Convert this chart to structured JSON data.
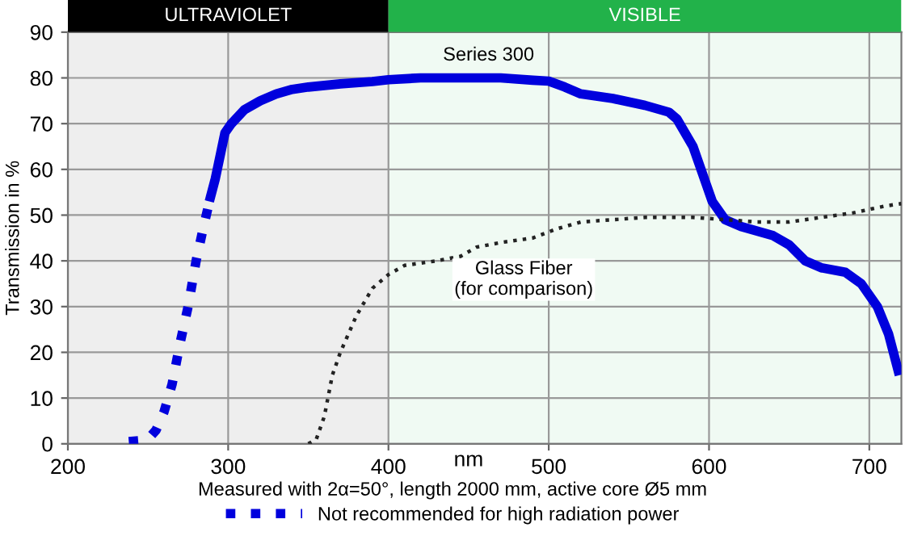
{
  "chart_data": {
    "type": "line",
    "xlabel": "nm",
    "ylabel": "Transmission in %",
    "xlim": [
      200,
      720
    ],
    "ylim": [
      0,
      90
    ],
    "xticks": [
      200,
      300,
      400,
      500,
      600,
      700
    ],
    "yticks": [
      0,
      10,
      20,
      30,
      40,
      50,
      60,
      70,
      80,
      90
    ],
    "grid": true,
    "legend": "bottom",
    "marker": "none",
    "bands": [
      {
        "axis": "x",
        "from": 200,
        "to": 400,
        "label": "ULTRAVIOLET",
        "color": "#000000"
      },
      {
        "axis": "x",
        "from": 400,
        "to": 720,
        "label": "VISIBLE",
        "color": "#22b24a"
      }
    ],
    "annotations": [
      "Measured with 2α=50°, length 2000 mm, active core Ø5 mm"
    ],
    "series": [
      {
        "name": "Series 300",
        "color": "#0000dd",
        "line_style": "solid",
        "x": [
          289,
          292,
          295,
          298,
          302,
          310,
          320,
          330,
          340,
          350,
          370,
          390,
          400,
          420,
          450,
          470,
          490,
          500,
          510,
          520,
          540,
          560,
          575,
          580,
          590,
          598,
          602,
          610,
          620,
          640,
          650,
          660,
          670,
          685,
          695,
          705,
          712,
          718
        ],
        "values": [
          54,
          58,
          63,
          68,
          70,
          73,
          75,
          76.5,
          77.5,
          78,
          78.7,
          79.2,
          79.6,
          80,
          80,
          80,
          79.5,
          79.3,
          78,
          76.5,
          75.5,
          74,
          72.5,
          71,
          65,
          57,
          53,
          49,
          47.5,
          45.5,
          43.5,
          40,
          38.5,
          37.5,
          35,
          30,
          24,
          16
        ]
      },
      {
        "name": "Glass Fiber\n(for comparison)",
        "color": "#222222",
        "line_style": "dotted",
        "x": [
          350,
          355,
          360,
          365,
          370,
          380,
          390,
          400,
          410,
          430,
          445,
          455,
          470,
          490,
          505,
          520,
          540,
          560,
          590,
          610,
          630,
          650,
          670,
          690,
          710,
          720
        ],
        "values": [
          0,
          1,
          6,
          15,
          20,
          28,
          34,
          37,
          39,
          40,
          41,
          43,
          44,
          45,
          47,
          48.5,
          49,
          49.5,
          49.5,
          49,
          48.5,
          48.5,
          49.5,
          50.5,
          52,
          52.5
        ]
      },
      {
        "name": "Not recommended for high radiation power",
        "color": "#0000dd",
        "line_style": "dotted",
        "x": [
          238,
          245,
          250,
          255,
          260,
          265,
          270,
          275,
          280,
          285,
          289
        ],
        "values": [
          0.5,
          0.7,
          1,
          3,
          7,
          13,
          22,
          30,
          40,
          48,
          54
        ]
      }
    ]
  }
}
